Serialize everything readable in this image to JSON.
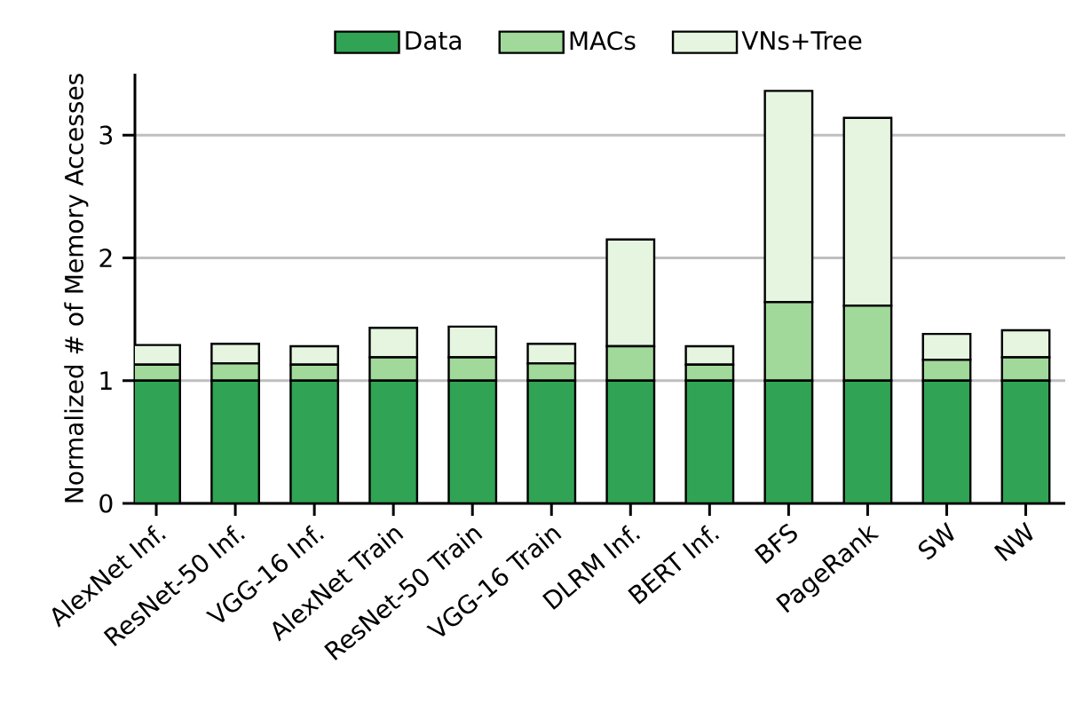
{
  "chart_data": {
    "type": "bar",
    "stacked": true,
    "ylabel": "Normalized # of Memory Accesses",
    "categories": [
      "AlexNet Inf.",
      "ResNet-50 Inf.",
      "VGG-16 Inf.",
      "AlexNet Train",
      "ResNet-50 Train",
      "VGG-16 Train",
      "DLRM Inf.",
      "BERT Inf.",
      "BFS",
      "PageRank",
      "SW",
      "NW"
    ],
    "series": [
      {
        "name": "Data",
        "color": "#31a354",
        "values": [
          1,
          1,
          1,
          1,
          1,
          1,
          1,
          1,
          1,
          1,
          1,
          1
        ]
      },
      {
        "name": "MACs",
        "color": "#a1d99b",
        "values": [
          0.13,
          0.14,
          0.13,
          0.19,
          0.19,
          0.14,
          0.28,
          0.13,
          0.64,
          0.61,
          0.17,
          0.19
        ]
      },
      {
        "name": "VNs+Tree",
        "color": "#e5f5e0",
        "values": [
          0.16,
          0.16,
          0.15,
          0.24,
          0.25,
          0.16,
          0.87,
          0.15,
          1.72,
          1.53,
          0.21,
          0.22
        ]
      }
    ],
    "ylim": [
      0,
      3.5
    ],
    "yticks": [
      0,
      1,
      2,
      3
    ],
    "grid": "y",
    "legend": "top"
  }
}
